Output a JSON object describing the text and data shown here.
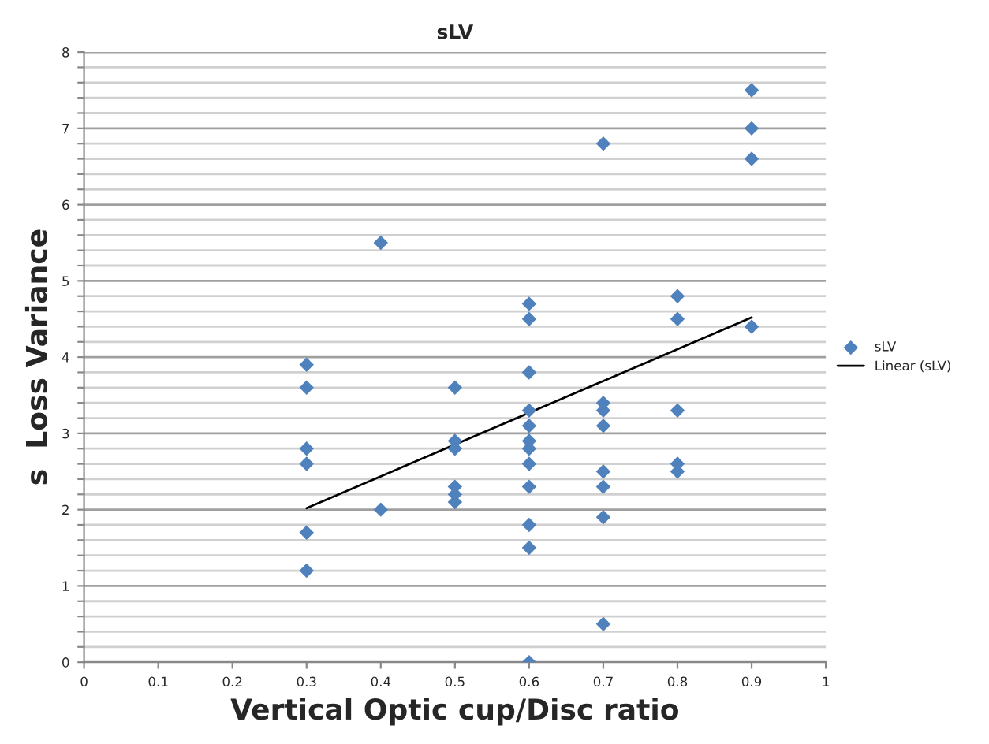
{
  "chart_data": {
    "type": "scatter",
    "title": "sLV",
    "xlabel": "Vertical Optic cup/Disc ratio",
    "ylabel": "s  Loss Variance",
    "xlim": [
      0,
      1
    ],
    "xticks": [
      0,
      0.1,
      0.2,
      0.3,
      0.4,
      0.5,
      0.6,
      0.7,
      0.8,
      0.9,
      1
    ],
    "ylim": [
      0,
      8
    ],
    "yticks": [
      0,
      {
        "value": 0.2,
        "label": null
      },
      {
        "value": 0.4,
        "label": null
      },
      {
        "value": 0.6,
        "label": null
      },
      {
        "value": 0.8,
        "label": null
      },
      1,
      {
        "value": 1.2,
        "label": null
      },
      {
        "value": 1.4,
        "label": null
      },
      {
        "value": 1.6,
        "label": null
      },
      {
        "value": 1.8,
        "label": null
      },
      2,
      {
        "value": 2.2,
        "label": null
      },
      {
        "value": 2.4,
        "label": null
      },
      {
        "value": 2.6,
        "label": null
      },
      {
        "value": 2.8,
        "label": null
      },
      3,
      {
        "value": 3.2,
        "label": null
      },
      {
        "value": 3.4,
        "label": null
      },
      {
        "value": 3.6,
        "label": null
      },
      {
        "value": 3.8,
        "label": null
      },
      4,
      {
        "value": 4.2,
        "label": null
      },
      {
        "value": 4.4,
        "label": null
      },
      {
        "value": 4.6,
        "label": null
      },
      {
        "value": 4.8,
        "label": null
      },
      5,
      {
        "value": 5.2,
        "label": null
      },
      {
        "value": 5.4,
        "label": null
      },
      {
        "value": 5.6,
        "label": null
      },
      {
        "value": 5.8,
        "label": null
      },
      6,
      {
        "value": 6.2,
        "label": null
      },
      {
        "value": 6.4,
        "label": null
      },
      {
        "value": 6.6,
        "label": null
      },
      {
        "value": 6.8,
        "label": null
      },
      7,
      {
        "value": 7.2,
        "label": null
      },
      {
        "value": 7.4,
        "label": null
      },
      {
        "value": 7.6,
        "label": null
      },
      {
        "value": 7.8,
        "label": null
      },
      8
    ],
    "grid": "y",
    "legend": "right",
    "series": [
      {
        "name": "sLV",
        "marker": "diamond",
        "color": "#4f81bd",
        "x": [
          0.3,
          0.3,
          0.3,
          0.3,
          0.3,
          0.3,
          0.4,
          0.4,
          0.5,
          0.5,
          0.5,
          0.5,
          0.5,
          0.5,
          0.6,
          0.6,
          0.6,
          0.6,
          0.6,
          0.6,
          0.6,
          0.6,
          0.6,
          0.6,
          0.6,
          0.6,
          0.7,
          0.7,
          0.7,
          0.7,
          0.7,
          0.7,
          0.7,
          0.7,
          0.8,
          0.8,
          0.8,
          0.8,
          0.8,
          0.9,
          0.9,
          0.9,
          0.9
        ],
        "values": [
          3.9,
          3.6,
          2.8,
          2.6,
          1.7,
          1.2,
          5.5,
          2.0,
          3.6,
          2.9,
          2.8,
          2.3,
          2.2,
          2.1,
          4.7,
          4.5,
          3.8,
          3.3,
          3.1,
          2.9,
          2.8,
          2.6,
          2.3,
          1.8,
          1.5,
          0,
          6.8,
          3.4,
          3.3,
          3.1,
          2.5,
          2.3,
          1.9,
          0.5,
          4.8,
          4.5,
          3.3,
          2.6,
          2.5,
          7.5,
          7.0,
          6.6,
          4.4
        ]
      },
      {
        "name": "Linear (sLV)",
        "type": "line",
        "marker": "none",
        "color": "#000000",
        "x": [
          0.3,
          0.9
        ],
        "values": [
          2.02,
          4.52
        ]
      }
    ]
  }
}
